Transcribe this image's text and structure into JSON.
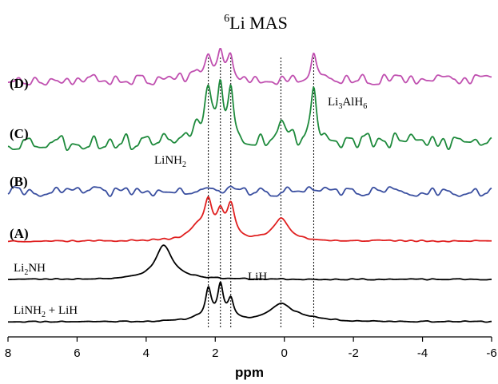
{
  "chart_data": {
    "type": "line",
    "title_main": "Li MAS",
    "title_sup": "6",
    "xlabel": "ppm",
    "xlim": [
      8,
      -6
    ],
    "reversed_x": true,
    "x_ticks": [
      8,
      6,
      4,
      2,
      0,
      -2,
      -4,
      -6
    ],
    "x_tick_labels": [
      "8",
      "6",
      "4",
      "2",
      "0",
      "-2",
      "-4",
      "-6"
    ],
    "reference_lines_ppm": [
      2.2,
      1.85,
      1.55,
      0.1,
      -0.85
    ],
    "annotations": {
      "linh2_base": "LiNH",
      "linh2_sub": "2",
      "li3alh6_a": "Li",
      "li3alh6_b": "3",
      "li3alh6_c": "AlH",
      "li3alh6_d": "6",
      "lih": "LiH",
      "li2nh_a": "Li",
      "li2nh_b": "2",
      "li2nh_c": "NH",
      "mix_a": "LiNH",
      "mix_b": "2",
      "mix_c": " + LiH"
    },
    "series": [
      {
        "name": "LiNH2 + LiH",
        "color": "#000000",
        "noise": 0.01,
        "seed": 11,
        "peaks": [
          {
            "x": 2.2,
            "h": 0.5,
            "w": 0.1
          },
          {
            "x": 1.85,
            "h": 0.57,
            "w": 0.1
          },
          {
            "x": 1.55,
            "h": 0.32,
            "w": 0.1
          },
          {
            "x": 2.5,
            "h": 0.05,
            "w": 0.35
          },
          {
            "x": 0.1,
            "h": 0.28,
            "w": 0.4
          },
          {
            "x": -0.6,
            "h": 0.05,
            "w": 0.6
          }
        ]
      },
      {
        "name": "Li2NH",
        "color": "#000000",
        "noise": 0.01,
        "seed": 23,
        "peaks": [
          {
            "x": 3.5,
            "h": 0.55,
            "w": 0.28
          },
          {
            "x": 3.2,
            "h": 0.05,
            "w": 0.6
          }
        ]
      },
      {
        "name": "(A)",
        "color": "#e02020",
        "noise": 0.012,
        "seed": 37,
        "peaks": [
          {
            "x": 2.2,
            "h": 0.5,
            "w": 0.14
          },
          {
            "x": 1.85,
            "h": 0.32,
            "w": 0.12
          },
          {
            "x": 1.55,
            "h": 0.5,
            "w": 0.14
          },
          {
            "x": 2.5,
            "h": 0.18,
            "w": 0.3
          },
          {
            "x": 0.1,
            "h": 0.32,
            "w": 0.28
          }
        ]
      },
      {
        "name": "(B)",
        "color": "#3a4fa0",
        "noise": 0.2,
        "seed": 41,
        "peaks": [
          {
            "x": 1.55,
            "h": 0.2,
            "w": 0.12
          }
        ]
      },
      {
        "name": "(C)",
        "color": "#1e8a3c",
        "noise": 0.16,
        "seed": 53,
        "peaks": [
          {
            "x": 2.2,
            "h": 0.7,
            "w": 0.12
          },
          {
            "x": 1.85,
            "h": 1.0,
            "w": 0.1
          },
          {
            "x": 1.55,
            "h": 0.95,
            "w": 0.1
          },
          {
            "x": 2.5,
            "h": 0.3,
            "w": 0.3
          },
          {
            "x": 0.1,
            "h": 0.3,
            "w": 0.18
          },
          {
            "x": -0.85,
            "h": 1.0,
            "w": 0.1
          }
        ]
      },
      {
        "name": "(D)",
        "color": "#c050b0",
        "noise": 0.14,
        "seed": 67,
        "peaks": [
          {
            "x": 2.2,
            "h": 0.6,
            "w": 0.12
          },
          {
            "x": 1.85,
            "h": 0.72,
            "w": 0.1
          },
          {
            "x": 1.55,
            "h": 0.6,
            "w": 0.1
          },
          {
            "x": 2.5,
            "h": 0.2,
            "w": 0.25
          },
          {
            "x": -0.85,
            "h": 0.75,
            "w": 0.1
          }
        ]
      }
    ],
    "panel_labels": [
      "(A)",
      "(B)",
      "(C)",
      "(D)"
    ],
    "grid": false
  }
}
